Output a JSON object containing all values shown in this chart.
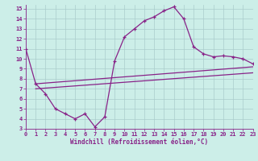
{
  "xlabel": "Windchill (Refroidissement éolien,°C)",
  "bg_color": "#cceee8",
  "grid_color": "#aacccc",
  "line_color": "#882288",
  "xlim": [
    0,
    23
  ],
  "ylim": [
    3,
    15.4
  ],
  "xticks": [
    0,
    1,
    2,
    3,
    4,
    5,
    6,
    7,
    8,
    9,
    10,
    11,
    12,
    13,
    14,
    15,
    16,
    17,
    18,
    19,
    20,
    21,
    22,
    23
  ],
  "yticks": [
    3,
    4,
    5,
    6,
    7,
    8,
    9,
    10,
    11,
    12,
    13,
    14,
    15
  ],
  "curve1_x": [
    0,
    1,
    2,
    3,
    4,
    5,
    6,
    7,
    8,
    9,
    10,
    11,
    12,
    13,
    14,
    15,
    16,
    17,
    18,
    19,
    20,
    21,
    22,
    23
  ],
  "curve1_y": [
    11.0,
    7.5,
    6.5,
    5.0,
    4.5,
    4.0,
    4.5,
    3.2,
    4.2,
    9.8,
    12.2,
    13.0,
    13.8,
    14.2,
    14.8,
    15.2,
    14.0,
    11.2,
    10.5,
    10.2,
    10.3,
    10.2,
    10.0,
    9.5
  ],
  "curve2_x": [
    1,
    23
  ],
  "curve2_y": [
    7.5,
    9.2
  ],
  "curve3_x": [
    1,
    23
  ],
  "curve3_y": [
    7.0,
    8.6
  ]
}
